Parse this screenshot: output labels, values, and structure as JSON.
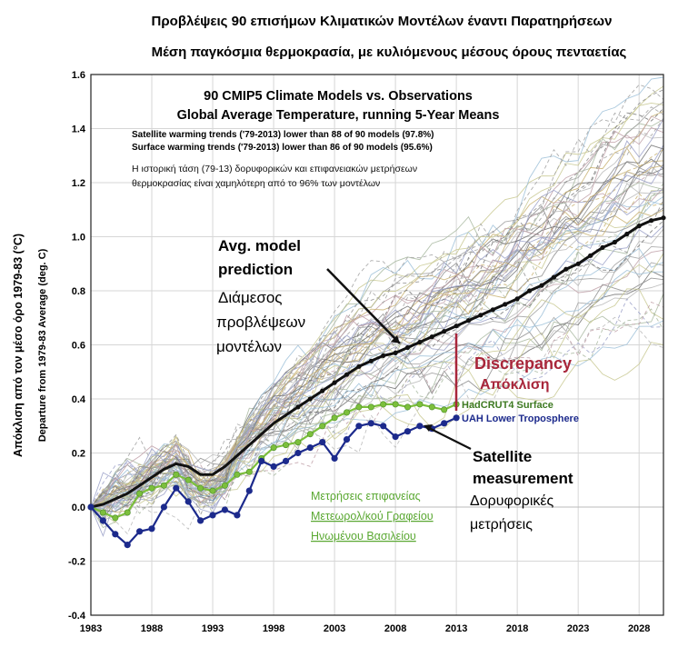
{
  "chart_data": {
    "type": "line",
    "titles": {
      "greek_line1": "Προβλέψεις 90 επισήμων Κλιματικών Μοντέλων έναντι Παρατηρήσεων",
      "greek_line2": "Μέση παγκόσμια θερμοκρασία, με κυλιόμενους μέσους όρους πενταετίας",
      "english_line1": "90 CMIP5 Climate Models vs. Observations",
      "english_line2": "Global Average Temperature, running 5-Year Means"
    },
    "notes": {
      "satellite_trend": "Satellite warming trends ('79-2013) lower than 88 of 90 models (97.8%)",
      "surface_trend": "Surface warming trends ('79-2013) lower than 86 of 90 models (95.6%)",
      "greek_note_line1": "Η ιστορική τάση (79-13) δορυφορικών και επιφανειακών μετρήσεων",
      "greek_note_line2": "θερμοκρασίας είναι χαμηλότερη από το 96% των μοντέλων"
    },
    "ylabel_greek": "Απόκλιση από τον μέσο όρο 1979-83 (°C)",
    "ylabel_english": "Departure from 1979-83 Average (deg. C)",
    "ylim": [
      -0.4,
      1.6
    ],
    "yticks": [
      "-0.4",
      "-0.2",
      "0.0",
      "0.2",
      "0.4",
      "0.6",
      "0.8",
      "1.0",
      "1.2",
      "1.4",
      "1.6"
    ],
    "xlim": [
      1983,
      2030
    ],
    "xticks": [
      "1983",
      "1988",
      "1993",
      "1998",
      "2003",
      "2008",
      "2013",
      "2018",
      "2023",
      "2028"
    ],
    "annotations": {
      "avg_model_en_1": "Avg. model",
      "avg_model_en_2": "prediction",
      "avg_model_gr_1": "Διάμεσος",
      "avg_model_gr_2": "προβλέψεων",
      "avg_model_gr_3": "μοντέλων",
      "discrepancy_en": "Discrepancy",
      "discrepancy_gr": "Απόκλιση",
      "hadcrut": "HadCRUT4 Surface",
      "uah": "UAH Lower Troposphere",
      "satellite_en_1": "Satellite",
      "satellite_en_2": "measurement",
      "satellite_gr_1": "Δορυφορικές",
      "satellite_gr_2": "μετρήσεις",
      "surface_gr_1": "Μετρήσεις επιφανείας",
      "surface_gr_2": "Μετεωρολ/κού Γραφείου",
      "surface_gr_3": "Ηνωμένου Βασιλείου"
    },
    "series": [
      {
        "name": "Avg. model prediction",
        "color": "#111111",
        "x": [
          1983,
          1984,
          1985,
          1986,
          1987,
          1988,
          1989,
          1990,
          1991,
          1992,
          1993,
          1994,
          1995,
          1996,
          1997,
          1998,
          1999,
          2000,
          2001,
          2002,
          2003,
          2004,
          2005,
          2006,
          2007,
          2008,
          2009,
          2010,
          2011,
          2012,
          2013,
          2014,
          2015,
          2016,
          2017,
          2018,
          2019,
          2020,
          2021,
          2022,
          2023,
          2024,
          2025,
          2026,
          2027,
          2028,
          2029,
          2030
        ],
        "values": [
          0.0,
          0.01,
          0.03,
          0.05,
          0.08,
          0.11,
          0.14,
          0.16,
          0.15,
          0.12,
          0.12,
          0.15,
          0.19,
          0.23,
          0.27,
          0.31,
          0.34,
          0.37,
          0.4,
          0.43,
          0.46,
          0.49,
          0.52,
          0.54,
          0.56,
          0.57,
          0.59,
          0.61,
          0.63,
          0.65,
          0.67,
          0.69,
          0.71,
          0.73,
          0.75,
          0.77,
          0.8,
          0.82,
          0.85,
          0.88,
          0.9,
          0.93,
          0.96,
          0.98,
          1.01,
          1.04,
          1.06,
          1.07
        ]
      },
      {
        "name": "HadCRUT4 Surface",
        "color": "#7cbf3c",
        "x": [
          1983,
          1984,
          1985,
          1986,
          1987,
          1988,
          1989,
          1990,
          1991,
          1992,
          1993,
          1994,
          1995,
          1996,
          1997,
          1998,
          1999,
          2000,
          2001,
          2002,
          2003,
          2004,
          2005,
          2006,
          2007,
          2008,
          2009,
          2010,
          2011,
          2012,
          2013
        ],
        "values": [
          0.0,
          -0.02,
          -0.04,
          -0.02,
          0.05,
          0.07,
          0.08,
          0.12,
          0.1,
          0.07,
          0.06,
          0.08,
          0.12,
          0.13,
          0.18,
          0.22,
          0.23,
          0.24,
          0.27,
          0.3,
          0.33,
          0.35,
          0.37,
          0.37,
          0.38,
          0.38,
          0.37,
          0.38,
          0.37,
          0.36,
          0.38
        ]
      },
      {
        "name": "UAH Lower Troposphere",
        "color": "#1c2a8c",
        "x": [
          1983,
          1984,
          1985,
          1986,
          1987,
          1988,
          1989,
          1990,
          1991,
          1992,
          1993,
          1994,
          1995,
          1996,
          1997,
          1998,
          1999,
          2000,
          2001,
          2002,
          2003,
          2004,
          2005,
          2006,
          2007,
          2008,
          2009,
          2010,
          2011,
          2012,
          2013
        ],
        "values": [
          0.0,
          -0.05,
          -0.1,
          -0.14,
          -0.09,
          -0.08,
          0.0,
          0.07,
          0.02,
          -0.05,
          -0.03,
          -0.01,
          -0.03,
          0.06,
          0.17,
          0.15,
          0.17,
          0.2,
          0.22,
          0.24,
          0.18,
          0.25,
          0.3,
          0.31,
          0.3,
          0.26,
          0.28,
          0.3,
          0.29,
          0.31,
          0.33
        ]
      }
    ],
    "ensemble_colors": [
      "#8c8c8c",
      "#b8b8b8",
      "#a8b8a0",
      "#c8b070",
      "#9aa0c8",
      "#bfa0a8",
      "#707070",
      "#9cc0d8",
      "#c8c890",
      "#a0a0a0"
    ],
    "discrepancy_color": "#a8263a",
    "surface_gr_color": "#5aa832",
    "satellite_color": "#1c2a8c"
  }
}
